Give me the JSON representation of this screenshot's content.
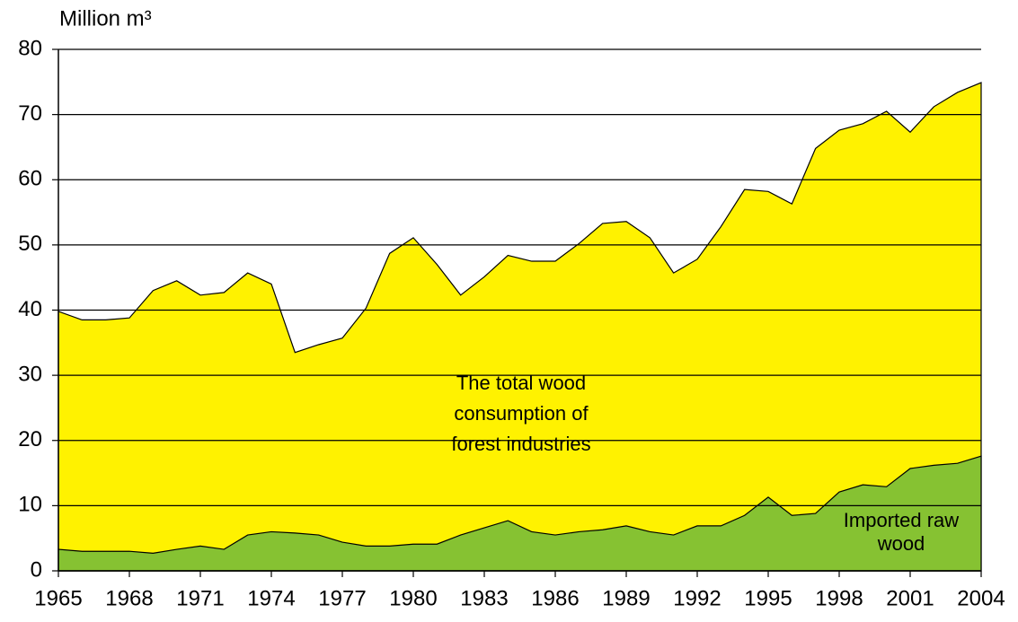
{
  "chart_data": {
    "type": "area",
    "ylabel": "Million m³",
    "x": [
      1965,
      1966,
      1967,
      1968,
      1969,
      1970,
      1971,
      1972,
      1973,
      1974,
      1975,
      1976,
      1977,
      1978,
      1979,
      1980,
      1981,
      1982,
      1983,
      1984,
      1985,
      1986,
      1987,
      1988,
      1989,
      1990,
      1991,
      1992,
      1993,
      1994,
      1995,
      1996,
      1997,
      1998,
      1999,
      2000,
      2001,
      2002,
      2003,
      2004
    ],
    "series": [
      {
        "name": "The total wood consumption of forest industries",
        "color": "#fff200",
        "values": [
          39.8,
          38.5,
          38.5,
          38.8,
          43,
          44.5,
          42.3,
          42.7,
          45.7,
          44,
          33.5,
          34.7,
          35.7,
          40.3,
          48.7,
          51.1,
          47,
          42.3,
          45.1,
          48.4,
          47.5,
          47.5,
          50.2,
          53.3,
          53.6,
          51.1,
          45.7,
          47.8,
          52.8,
          58.5,
          58.2,
          56.3,
          64.8,
          67.6,
          68.6,
          70.5,
          67.3,
          71.2,
          73.4,
          74.9
        ]
      },
      {
        "name": "Imported raw wood",
        "color": "#86c232",
        "values": [
          3.3,
          3,
          3,
          3,
          2.7,
          3.3,
          3.8,
          3.3,
          5.5,
          6,
          5.8,
          5.5,
          4.4,
          3.8,
          3.8,
          4.1,
          4.1,
          5.5,
          6.6,
          7.7,
          6,
          5.5,
          6,
          6.3,
          6.9,
          6,
          5.5,
          6.9,
          6.9,
          8.5,
          11.3,
          8.5,
          8.8,
          12.1,
          13.2,
          12.9,
          15.7,
          16.2,
          16.5,
          17.6
        ]
      }
    ],
    "annotations": [
      [
        "The total wood",
        "consumption of",
        "forest industries"
      ],
      [
        "Imported raw",
        "wood"
      ]
    ],
    "xlim": [
      1965,
      2004
    ],
    "xticks": [
      1965,
      1968,
      1971,
      1974,
      1977,
      1980,
      1983,
      1986,
      1989,
      1992,
      1995,
      1998,
      2001,
      2004
    ],
    "ylim": [
      0,
      80
    ],
    "yticks": [
      0,
      10,
      20,
      30,
      40,
      50,
      60,
      70,
      80
    ],
    "grid": true
  }
}
